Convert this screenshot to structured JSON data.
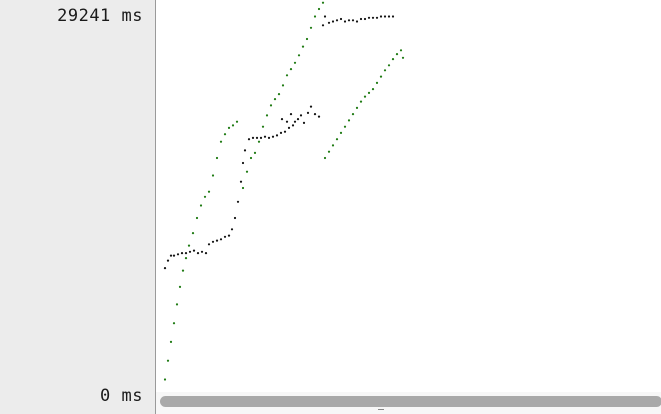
{
  "axis": {
    "max_label": "29241 ms",
    "min_label": "0 ms"
  },
  "colors": {
    "series_black": "#111111",
    "series_green": "#1e7a12"
  },
  "chart_data": {
    "type": "scatter",
    "ylim": [
      0,
      29241
    ],
    "series": [
      {
        "color": "#111111",
        "points": [
          [
            0,
            9100
          ],
          [
            3,
            9700
          ],
          [
            6,
            10100
          ],
          [
            9,
            10100
          ],
          [
            13,
            10200
          ],
          [
            17,
            10300
          ],
          [
            21,
            10300
          ],
          [
            25,
            10400
          ],
          [
            29,
            10500
          ],
          [
            33,
            10300
          ],
          [
            37,
            10400
          ],
          [
            41,
            10300
          ],
          [
            44,
            11000
          ],
          [
            48,
            11200
          ],
          [
            52,
            11300
          ],
          [
            56,
            11400
          ],
          [
            60,
            11600
          ],
          [
            64,
            11700
          ],
          [
            67,
            12200
          ],
          [
            70,
            13100
          ],
          [
            73,
            14400
          ],
          [
            76,
            16000
          ],
          [
            78,
            17500
          ],
          [
            80,
            18500
          ],
          [
            84,
            19400
          ],
          [
            88,
            19500
          ],
          [
            92,
            19500
          ],
          [
            96,
            19500
          ],
          [
            100,
            19600
          ],
          [
            104,
            19500
          ],
          [
            108,
            19600
          ],
          [
            112,
            19700
          ],
          [
            116,
            19900
          ],
          [
            120,
            20000
          ],
          [
            124,
            20300
          ],
          [
            128,
            20500
          ],
          [
            130,
            20800
          ],
          [
            133,
            21000
          ],
          [
            136,
            21300
          ],
          [
            139,
            20700
          ],
          [
            143,
            21500
          ],
          [
            146,
            22000
          ],
          [
            150,
            21400
          ],
          [
            154,
            21200
          ],
          [
            117,
            21000
          ],
          [
            122,
            20800
          ],
          [
            126,
            21400
          ],
          [
            158,
            28500
          ],
          [
            160,
            29200
          ],
          [
            164,
            28700
          ],
          [
            168,
            28800
          ],
          [
            172,
            28900
          ],
          [
            176,
            29000
          ],
          [
            180,
            28800
          ],
          [
            184,
            28900
          ],
          [
            188,
            28900
          ],
          [
            192,
            28800
          ],
          [
            196,
            29000
          ],
          [
            200,
            29000
          ],
          [
            204,
            29100
          ],
          [
            208,
            29100
          ],
          [
            212,
            29100
          ],
          [
            216,
            29200
          ],
          [
            220,
            29200
          ],
          [
            224,
            29200
          ],
          [
            228,
            29200
          ]
        ]
      },
      {
        "color": "#1e7a12",
        "points": [
          [
            0,
            200
          ],
          [
            3,
            1700
          ],
          [
            6,
            3200
          ],
          [
            9,
            4700
          ],
          [
            12,
            6200
          ],
          [
            15,
            7600
          ],
          [
            18,
            8900
          ],
          [
            21,
            9900
          ],
          [
            24,
            10900
          ],
          [
            28,
            11900
          ],
          [
            32,
            13100
          ],
          [
            36,
            14100
          ],
          [
            40,
            14800
          ],
          [
            44,
            15200
          ],
          [
            48,
            16500
          ],
          [
            52,
            17900
          ],
          [
            56,
            19200
          ],
          [
            60,
            19800
          ],
          [
            64,
            20300
          ],
          [
            68,
            20500
          ],
          [
            72,
            20800
          ],
          [
            78,
            15500
          ],
          [
            82,
            16800
          ],
          [
            86,
            17900
          ],
          [
            90,
            18300
          ],
          [
            94,
            19200
          ],
          [
            98,
            20400
          ],
          [
            102,
            21300
          ],
          [
            106,
            22100
          ],
          [
            110,
            22600
          ],
          [
            114,
            23000
          ],
          [
            118,
            23700
          ],
          [
            122,
            24500
          ],
          [
            126,
            25000
          ],
          [
            130,
            25500
          ],
          [
            134,
            26100
          ],
          [
            138,
            26800
          ],
          [
            142,
            27400
          ],
          [
            146,
            28300
          ],
          [
            150,
            29200
          ],
          [
            154,
            29800
          ],
          [
            158,
            30300
          ],
          [
            160,
            17900
          ],
          [
            164,
            18400
          ],
          [
            168,
            18900
          ],
          [
            172,
            19400
          ],
          [
            176,
            19900
          ],
          [
            180,
            20400
          ],
          [
            184,
            20900
          ],
          [
            188,
            21400
          ],
          [
            192,
            21900
          ],
          [
            196,
            22400
          ],
          [
            200,
            22800
          ],
          [
            204,
            23100
          ],
          [
            208,
            23400
          ],
          [
            212,
            23900
          ],
          [
            216,
            24400
          ],
          [
            220,
            24900
          ],
          [
            224,
            25300
          ],
          [
            228,
            25800
          ],
          [
            232,
            26200
          ],
          [
            236,
            26500
          ],
          [
            238,
            25900
          ]
        ]
      }
    ]
  }
}
